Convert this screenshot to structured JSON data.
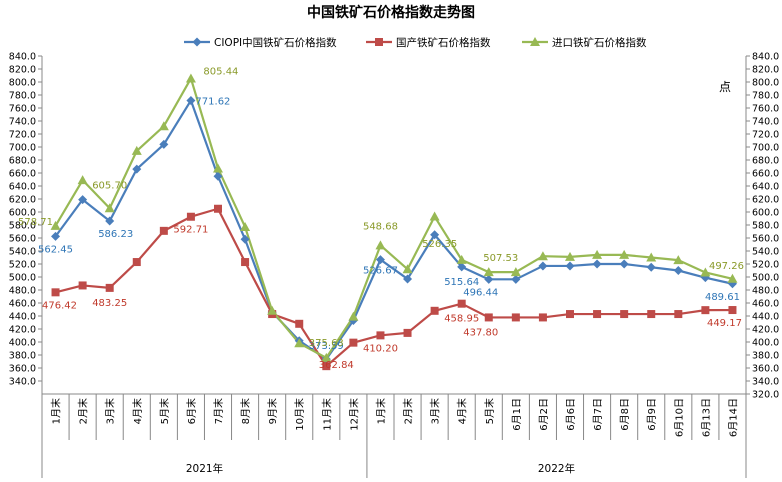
{
  "chart_data": {
    "type": "line",
    "title": "中国铁矿石价格指数走势图",
    "right_axis_unit": "点",
    "categories": [
      "1月末",
      "2月末",
      "3月末",
      "4月末",
      "5月末",
      "6月末",
      "7月末",
      "8月末",
      "9月末",
      "10月末",
      "11月末",
      "12月末",
      "1月末",
      "2月末",
      "3月末",
      "4月末",
      "5月末",
      "6月1日",
      "6月2日",
      "6月6日",
      "6月7日",
      "6月8日",
      "6月9日",
      "6月10日",
      "6月13日",
      "6月14日"
    ],
    "year_groups": [
      {
        "label": "2021年",
        "start": 0,
        "end": 11
      },
      {
        "label": "2022年",
        "start": 12,
        "end": 25
      }
    ],
    "ylim": [
      320,
      840
    ],
    "yticks": [
      "340.0",
      "360.0",
      "380.0",
      "400.0",
      "420.0",
      "440.0",
      "460.0",
      "480.0",
      "500.0",
      "520.0",
      "540.0",
      "560.0",
      "580.0",
      "600.0",
      "620.0",
      "640.0",
      "660.0",
      "680.0",
      "700.0",
      "720.0",
      "740.0",
      "760.0",
      "780.0",
      "800.0",
      "820.0",
      "840.0"
    ],
    "yticks_right": [
      "320.0",
      "340.0",
      "360.0",
      "380.0",
      "400.0",
      "420.0",
      "440.0",
      "460.0",
      "480.0",
      "500.0",
      "520.0",
      "540.0",
      "560.0",
      "580.0",
      "600.0",
      "620.0",
      "640.0",
      "660.0",
      "680.0",
      "700.0",
      "720.0",
      "740.0",
      "760.0",
      "780.0",
      "800.0",
      "820.0",
      "840.0"
    ],
    "series": [
      {
        "name": "CIOPI中国铁矿石价格指数",
        "color": "#4a7ebb",
        "marker": "diamond",
        "values": [
          562.45,
          619,
          586.23,
          666,
          704,
          771.62,
          655,
          558,
          446,
          402,
          373.59,
          433,
          526.67,
          497,
          565,
          515.64,
          496.44,
          496.44,
          517,
          517,
          520,
          520,
          515,
          510,
          499,
          489.61
        ]
      },
      {
        "name": "国产铁矿石价格指数",
        "color": "#be4b48",
        "marker": "square",
        "values": [
          476.42,
          487,
          483.25,
          523,
          571,
          592.71,
          605,
          523,
          443,
          428,
          362.84,
          399,
          410.2,
          414,
          448,
          458.95,
          437.8,
          437.8,
          437.8,
          443,
          443,
          443,
          443,
          443,
          449,
          449.17
        ]
      },
      {
        "name": "进口铁矿石价格指数",
        "color": "#98b954",
        "marker": "triangle",
        "values": [
          578.71,
          649,
          605.7,
          694,
          732,
          805.44,
          667,
          577,
          448,
          398,
          375.63,
          439,
          548.68,
          512,
          593,
          526.35,
          507.53,
          507.53,
          532,
          531,
          534,
          534,
          530,
          526,
          507,
          497.26
        ]
      }
    ],
    "labels": [
      {
        "series": 0,
        "index": 0,
        "text": "562.45"
      },
      {
        "series": 0,
        "index": 2,
        "text": "586.23"
      },
      {
        "series": 0,
        "index": 5,
        "text": "771.62"
      },
      {
        "series": 0,
        "index": 10,
        "text": "373.59"
      },
      {
        "series": 0,
        "index": 12,
        "text": "526.67"
      },
      {
        "series": 0,
        "index": 15,
        "text": "515.64"
      },
      {
        "series": 0,
        "index": 16,
        "text": "496.44"
      },
      {
        "series": 0,
        "index": 25,
        "text": "489.61"
      },
      {
        "series": 1,
        "index": 0,
        "text": "476.42"
      },
      {
        "series": 1,
        "index": 2,
        "text": "483.25"
      },
      {
        "series": 1,
        "index": 5,
        "text": "592.71"
      },
      {
        "series": 1,
        "index": 10,
        "text": "362.84"
      },
      {
        "series": 1,
        "index": 12,
        "text": "410.20"
      },
      {
        "series": 1,
        "index": 15,
        "text": "458.95"
      },
      {
        "series": 1,
        "index": 16,
        "text": "437.80"
      },
      {
        "series": 1,
        "index": 25,
        "text": "449.17"
      },
      {
        "series": 2,
        "index": 0,
        "text": "578.71"
      },
      {
        "series": 2,
        "index": 2,
        "text": "605.70"
      },
      {
        "series": 2,
        "index": 5,
        "text": "805.44"
      },
      {
        "series": 2,
        "index": 10,
        "text": "375.63"
      },
      {
        "series": 2,
        "index": 12,
        "text": "548.68"
      },
      {
        "series": 2,
        "index": 15,
        "text": "526.35"
      },
      {
        "series": 2,
        "index": 16,
        "text": "507.53"
      },
      {
        "series": 2,
        "index": 25,
        "text": "497.26"
      }
    ],
    "legend_position": "top-center",
    "grid": false
  }
}
